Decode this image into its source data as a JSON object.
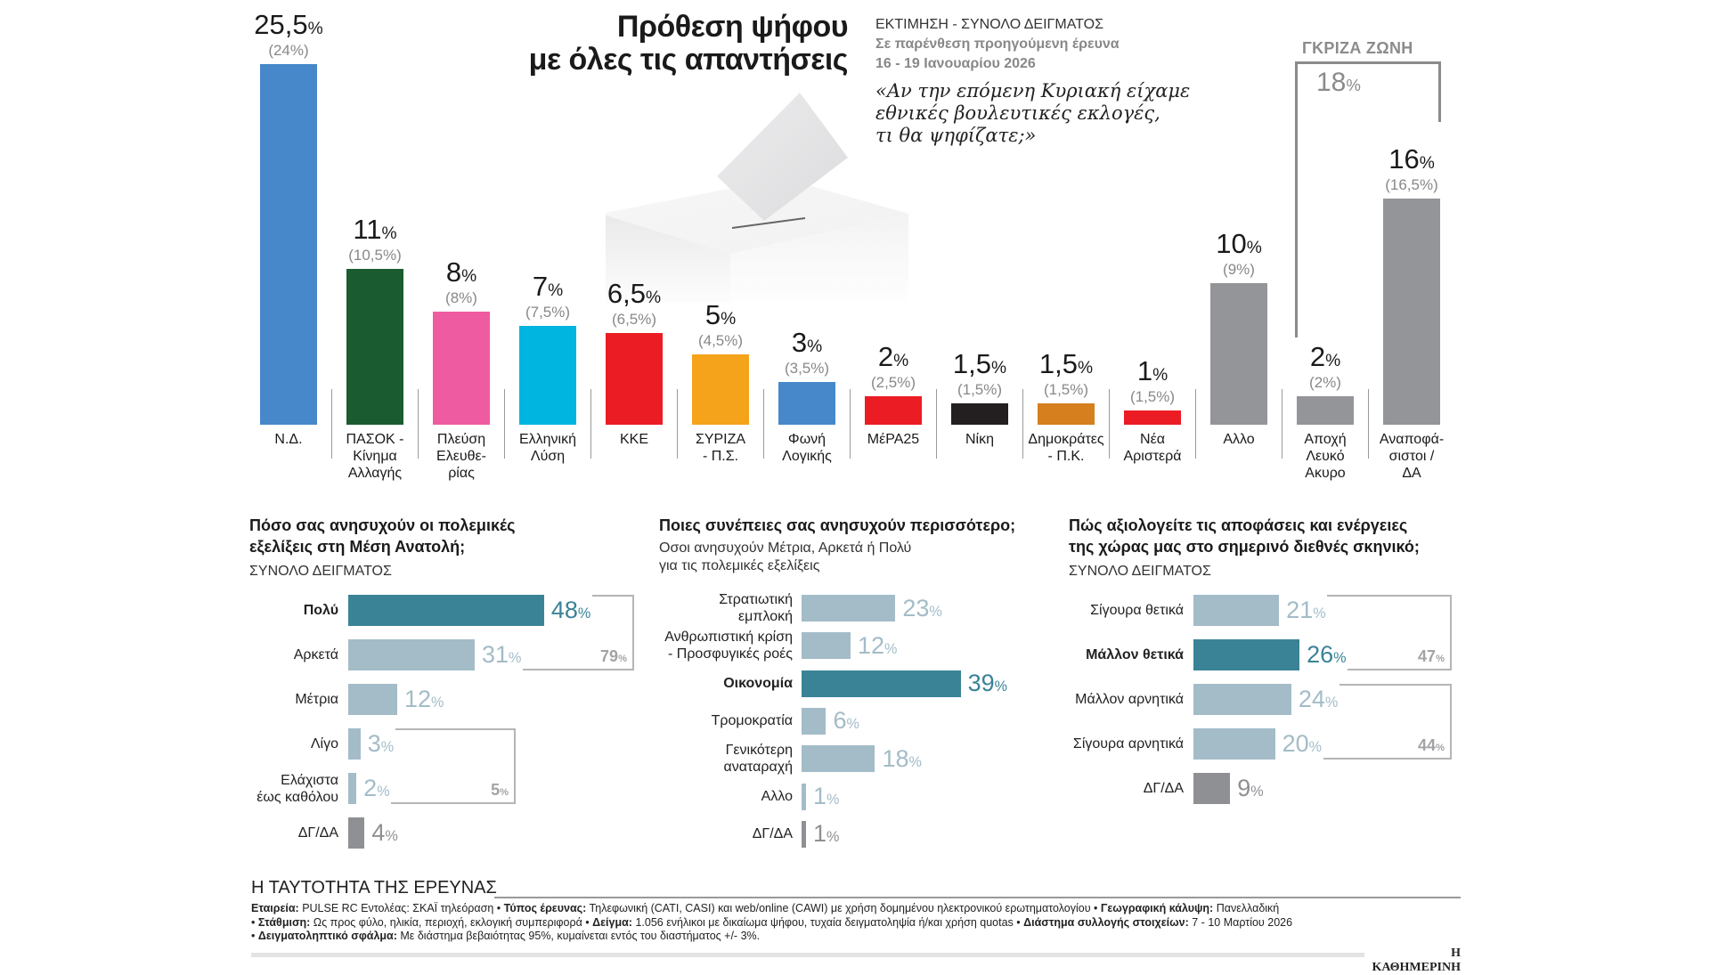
{
  "header": {
    "title_line1": "Πρόθεση ψήφου",
    "title_line2": "με όλες τις απαντήσεις",
    "estimate_label": "ΕΚΤΙΜΗΣΗ - ΣΥΝΟΛΟ ΔΕΙΓΜΑΤΟΣ",
    "prev_note": "Σε παρένθεση προηγούμενη έρευνα",
    "prev_date": "16 - 19 Ιανουαρίου 2026",
    "question_line1": "«Αν την επόμενη Κυριακή είχαμε",
    "question_line2": "εθνικές βουλευτικές εκλογές,",
    "question_line3": "τι θα ψηφίζατε;»"
  },
  "grey_zone": {
    "label": "ΓΚΡΙΖΑ ΖΩΝΗ",
    "total": "18",
    "unit": "%"
  },
  "colors": {
    "nd": "#4688c9",
    "pasok": "#1a5c30",
    "plefsi": "#ef5ba1",
    "ellisi": "#00b5e0",
    "kke": "#ec1c24",
    "syriza": "#f5a31a",
    "foni": "#4688c9",
    "mera25": "#ec1c24",
    "niki": "#231f20",
    "dimokrates": "#d57f1e",
    "nea_aristera": "#ec1c24",
    "grey": "#949598",
    "highlight": "#3a8396",
    "light": "#a3bcc8",
    "dk": "#8f9093"
  },
  "chart_data": [
    {
      "type": "bar",
      "title": "Πρόθεση ψήφου με όλες τις απαντήσεις",
      "unit": "%",
      "ylim": [
        0,
        26
      ],
      "categories": [
        {
          "label": "Ν.Δ.",
          "value": 25.5,
          "value_text": "25,5",
          "prev_text": "(24%)",
          "color": "#4688c9"
        },
        {
          "label": "ΠΑΣΟΚ - Κίνημα Αλλαγής",
          "label_lines": [
            "ΠΑΣΟΚ -",
            "Κίνημα",
            "Αλλαγής"
          ],
          "value": 11,
          "value_text": "11",
          "prev_text": "(10,5%)",
          "color": "#1a5c30"
        },
        {
          "label": "Πλεύση Ελευθε-ρίας",
          "label_lines": [
            "Πλεύση",
            "Ελευθε-",
            "ρίας"
          ],
          "value": 8,
          "value_text": "8",
          "prev_text": "(8%)",
          "color": "#ef5ba1"
        },
        {
          "label": "Ελληνική Λύση",
          "label_lines": [
            "Ελληνική",
            "Λύση"
          ],
          "value": 7,
          "value_text": "7",
          "prev_text": "(7,5%)",
          "color": "#00b5e0"
        },
        {
          "label": "ΚΚΕ",
          "value": 6.5,
          "value_text": "6,5",
          "prev_text": "(6,5%)",
          "color": "#ec1c24"
        },
        {
          "label": "ΣΥΡΙΖΑ - Π.Σ.",
          "label_lines": [
            "ΣΥΡΙΖΑ",
            "- Π.Σ."
          ],
          "value": 5,
          "value_text": "5",
          "prev_text": "(4,5%)",
          "color": "#f5a31a"
        },
        {
          "label": "Φωνή Λογικής",
          "label_lines": [
            "Φωνή",
            "Λογικής"
          ],
          "value": 3,
          "value_text": "3",
          "prev_text": "(3,5%)",
          "color": "#4688c9"
        },
        {
          "label": "ΜέΡΑ25",
          "value": 2,
          "value_text": "2",
          "prev_text": "(2,5%)",
          "color": "#ec1c24"
        },
        {
          "label": "Νίκη",
          "value": 1.5,
          "value_text": "1,5",
          "prev_text": "(1,5%)",
          "color": "#231f20"
        },
        {
          "label": "Δημοκράτες - Π.Κ.",
          "label_lines": [
            "Δημοκράτες",
            "- Π.Κ."
          ],
          "value": 1.5,
          "value_text": "1,5",
          "prev_text": "(1,5%)",
          "color": "#d57f1e"
        },
        {
          "label": "Νέα Αριστερά",
          "label_lines": [
            "Νέα",
            "Αριστερά"
          ],
          "value": 1,
          "value_text": "1",
          "prev_text": "(1,5%)",
          "color": "#ec1c24"
        },
        {
          "label": "Αλλο",
          "value": 10,
          "value_text": "10",
          "prev_text": "(9%)",
          "color": "#949598"
        },
        {
          "label": "Αποχή Λευκό Ακυρο",
          "label_lines": [
            "Αποχή",
            "Λευκό",
            "Ακυρο"
          ],
          "value": 2,
          "value_text": "2",
          "prev_text": "(2%)",
          "color": "#949598"
        },
        {
          "label": "Αναποφά-σιστοι / ΔΑ",
          "label_lines": [
            "Αναποφά-",
            "σιστοι /",
            "ΔΑ"
          ],
          "value": 16,
          "value_text": "16",
          "prev_text": "(16,5%)",
          "color": "#949598"
        }
      ]
    },
    {
      "type": "bar",
      "orientation": "horizontal",
      "title": "Πόσο σας ανησυχούν οι πολεμικές εξελίξεις στη Μέση Ανατολή;",
      "subtitle": "ΣΥΝΟΛΟ ΔΕΙΓΜΑΤΟΣ",
      "unit": "%",
      "categories": [
        {
          "label_lines": [
            "Πολύ"
          ],
          "value": 48,
          "style": "dark",
          "bold": true
        },
        {
          "label_lines": [
            "Αρκετά"
          ],
          "value": 31,
          "style": "light"
        },
        {
          "label_lines": [
            "Μέτρια"
          ],
          "value": 12,
          "style": "light"
        },
        {
          "label_lines": [
            "Λίγο"
          ],
          "value": 3,
          "style": "light"
        },
        {
          "label_lines": [
            "Ελάχιστα",
            "έως καθόλου"
          ],
          "value": 2,
          "style": "light"
        },
        {
          "label_lines": [
            "ΔΓ/ΔΑ"
          ],
          "value": 4,
          "style": "grey"
        }
      ],
      "groups": [
        {
          "rows": [
            0,
            1
          ],
          "total": 79
        },
        {
          "rows": [
            3,
            4
          ],
          "total": 5
        }
      ]
    },
    {
      "type": "bar",
      "orientation": "horizontal",
      "title": "Ποιες συνέπειες σας ανησυχούν περισσότερο;",
      "subtitle_line1": "Οσοι ανησυχούν Μέτρια, Αρκετά ή Πολύ",
      "subtitle_line2": "για τις πολεμικές εξελίξεις",
      "unit": "%",
      "categories": [
        {
          "label_lines": [
            "Στρατιωτική",
            "εμπλοκή"
          ],
          "value": 23,
          "style": "light"
        },
        {
          "label_lines": [
            "Ανθρωπιστική κρίση",
            "- Προσφυγικές ροές"
          ],
          "value": 12,
          "style": "light"
        },
        {
          "label_lines": [
            "Οικονομία"
          ],
          "value": 39,
          "style": "dark",
          "bold": true
        },
        {
          "label_lines": [
            "Τρομοκρατία"
          ],
          "value": 6,
          "style": "light"
        },
        {
          "label_lines": [
            "Γενικότερη",
            "αναταραχή"
          ],
          "value": 18,
          "style": "light"
        },
        {
          "label_lines": [
            "Αλλο"
          ],
          "value": 1,
          "style": "light"
        },
        {
          "label_lines": [
            "ΔΓ/ΔΑ"
          ],
          "value": 1,
          "style": "grey"
        }
      ],
      "groups": []
    },
    {
      "type": "bar",
      "orientation": "horizontal",
      "title_line1": "Πώς αξιολογείτε τις αποφάσεις και ενέργειες",
      "title_line2": "της χώρας μας στο σημερινό διεθνές σκηνικό;",
      "subtitle": "ΣΥΝΟΛΟ ΔΕΙΓΜΑΤΟΣ",
      "unit": "%",
      "categories": [
        {
          "label_lines": [
            "Σίγουρα θετικά"
          ],
          "value": 21,
          "style": "light"
        },
        {
          "label_lines": [
            "Μάλλον θετικά"
          ],
          "value": 26,
          "style": "dark",
          "bold": true
        },
        {
          "label_lines": [
            "Μάλλον αρνητικά"
          ],
          "value": 24,
          "style": "light"
        },
        {
          "label_lines": [
            "Σίγουρα αρνητικά"
          ],
          "value": 20,
          "style": "light"
        },
        {
          "label_lines": [
            "ΔΓ/ΔΑ"
          ],
          "value": 9,
          "style": "grey"
        }
      ],
      "groups": [
        {
          "rows": [
            0,
            1
          ],
          "total": 47
        },
        {
          "rows": [
            2,
            3
          ],
          "total": 44
        }
      ]
    }
  ],
  "panels": {
    "left": {
      "title_line1": "Πόσο σας ανησυχούν οι πολεμικές",
      "title_line2": "εξελίξεις στη Μέση Ανατολή;",
      "subtitle": "ΣΥΝΟΛΟ ΔΕΙΓΜΑΤΟΣ"
    },
    "middle": {
      "title": "Ποιες συνέπειες σας ανησυχούν περισσότερο;",
      "subtitle_line1": "Οσοι ανησυχούν Μέτρια, Αρκετά ή Πολύ",
      "subtitle_line2": "για τις πολεμικές εξελίξεις"
    },
    "right": {
      "title_line1": "Πώς αξιολογείτε τις αποφάσεις και ενέργειες",
      "title_line2": "της χώρας μας στο σημερινό διεθνές σκηνικό;",
      "subtitle": "ΣΥΝΟΛΟ ΔΕΙΓΜΑΤΟΣ"
    }
  },
  "footer": {
    "heading": "Η ΤΑΥΤΟΤΗΤΑ ΤΗΣ ΕΡΕΥΝΑΣ",
    "company_label": "Εταιρεία:",
    "company_value": " PULSE RC Εντολέας: ΣΚΑΪ τηλεόραση • ",
    "type_label": "Τύπος έρευνας:",
    "type_value": " Τηλεφωνική (CATI, CASI) και web/online (CAWI) με χρήση δομημένου ηλεκτρονικού ερωτηματολογίου • ",
    "geo_label": "Γεωγραφική κάλυψη:",
    "geo_value": " Πανελλαδική",
    "weight_prefix": "• ",
    "weight_label": "Στάθμιση:",
    "weight_value": " Ως προς φύλο, ηλικία, περιοχή, εκλογική συμπεριφορά • ",
    "sample_label": "Δείγμα:",
    "sample_value": " 1.056 ενήλικοι με δικαίωμα ψήφου, τυχαία δειγματοληψία ή/και χρήση quotas • ",
    "period_label": "Διάστημα συλλογής στοιχείων:",
    "period_value": " 7 - 10 Μαρτίου 2026",
    "error_prefix": "• ",
    "error_label": "Δειγματοληπτικό σφάλμα:",
    "error_value": " Με διάστημα βεβαιότητας 95%, κυμαίνεται εντός του διαστήματος +/- 3%.",
    "brand": "Η ΚΑΘΗΜΕΡΙΝΗ"
  }
}
